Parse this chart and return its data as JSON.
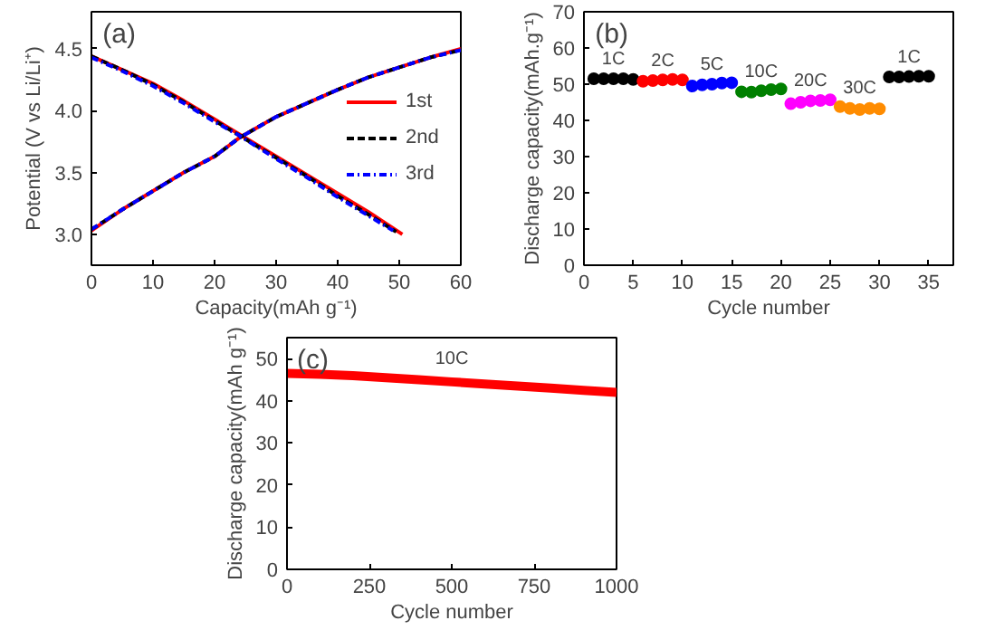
{
  "chart_data": [
    {
      "type": "line",
      "title": "(a)",
      "xlabel": "Capacity(mAh g⁻¹)",
      "ylabel": "Potential (V vs Li/Li⁺)",
      "xlim": [
        0,
        60
      ],
      "xticks": [
        0,
        10,
        20,
        30,
        40,
        50,
        60
      ],
      "ylim": [
        2.75,
        4.8
      ],
      "yticks": [
        {
          "value": 3,
          "label": "3.0"
        },
        3.5,
        {
          "value": 4,
          "label": "4.0"
        },
        4.5
      ],
      "legend": "right",
      "grid": false,
      "series": [
        {
          "name": "1st",
          "color": "#ff0000",
          "line_style": "solid",
          "x": [
            0,
            5,
            10,
            15,
            20,
            24,
            30,
            35,
            40,
            45,
            50,
            55,
            60,
            null,
            0,
            5,
            10,
            15,
            20,
            24,
            30,
            35,
            40,
            45,
            50.5
          ],
          "values": [
            3.03,
            3.2,
            3.35,
            3.5,
            3.63,
            3.78,
            3.95,
            4.06,
            4.17,
            4.27,
            4.35,
            4.43,
            4.5,
            null,
            4.44,
            4.33,
            4.22,
            4.08,
            3.93,
            3.81,
            3.63,
            3.48,
            3.33,
            3.18,
            3.0
          ]
        },
        {
          "name": "2nd",
          "color": "#000000",
          "line_style": "dashed",
          "x": [
            0,
            5,
            10,
            15,
            20,
            24,
            30,
            35,
            40,
            45,
            50,
            55,
            60,
            null,
            0,
            5,
            10,
            15,
            20,
            24,
            30,
            35,
            40,
            45,
            49.5
          ],
          "values": [
            3.04,
            3.2,
            3.35,
            3.5,
            3.63,
            3.78,
            3.95,
            4.06,
            4.17,
            4.27,
            4.35,
            4.43,
            4.49,
            null,
            4.44,
            4.33,
            4.21,
            4.07,
            3.92,
            3.8,
            3.62,
            3.47,
            3.31,
            3.16,
            3.02
          ]
        },
        {
          "name": "3rd",
          "color": "#0000ff",
          "line_style": "dotted",
          "x": [
            0,
            5,
            10,
            15,
            20,
            24,
            30,
            35,
            40,
            45,
            50,
            55,
            60,
            null,
            0,
            5,
            10,
            15,
            20,
            24,
            30,
            35,
            40,
            45,
            49
          ],
          "values": [
            3.04,
            3.2,
            3.35,
            3.5,
            3.63,
            3.78,
            3.95,
            4.06,
            4.17,
            4.27,
            4.35,
            4.43,
            4.49,
            null,
            4.43,
            4.32,
            4.2,
            4.06,
            3.91,
            3.8,
            3.61,
            3.46,
            3.3,
            3.15,
            3.03
          ]
        }
      ]
    },
    {
      "type": "scatter",
      "title": "(b)",
      "xlabel": "Cycle number",
      "ylabel": "Discharge capacity(mAh.g⁻¹)",
      "xlim": [
        0,
        37.5
      ],
      "xticks": [
        0,
        5,
        10,
        15,
        20,
        25,
        30,
        35
      ],
      "ylim": [
        0,
        70
      ],
      "yticks": [
        0,
        10,
        20,
        30,
        40,
        50,
        60,
        70
      ],
      "marker": "circle",
      "grid": false,
      "series": [
        {
          "color": "#000000",
          "x": [
            1,
            2,
            3,
            4,
            5
          ],
          "values": [
            51.5,
            51.5,
            51.5,
            51.5,
            51.3
          ]
        },
        {
          "color": "#ff0000",
          "x": [
            6,
            7,
            8,
            9,
            10
          ],
          "values": [
            50.8,
            51.0,
            51.2,
            51.3,
            51.2
          ]
        },
        {
          "color": "#0000ff",
          "x": [
            11,
            12,
            13,
            14,
            15
          ],
          "values": [
            49.5,
            49.8,
            50.0,
            50.3,
            50.4
          ]
        },
        {
          "color": "#008000",
          "x": [
            16,
            17,
            18,
            19,
            20
          ],
          "values": [
            47.9,
            47.8,
            48.2,
            48.5,
            48.7
          ]
        },
        {
          "color": "#ff00ff",
          "x": [
            21,
            22,
            23,
            24,
            25
          ],
          "values": [
            44.6,
            45.0,
            45.4,
            45.5,
            45.7
          ]
        },
        {
          "color": "#ff8c00",
          "x": [
            26,
            27,
            28,
            29,
            30
          ],
          "values": [
            43.8,
            43.3,
            43.0,
            43.3,
            43.2
          ]
        },
        {
          "color": "#000000",
          "x": [
            31,
            32,
            33,
            34,
            35
          ],
          "values": [
            52.0,
            52.0,
            52.1,
            52.2,
            52.2
          ]
        }
      ],
      "annotations": [
        {
          "text": "1C",
          "x": 3,
          "y": 54
        },
        {
          "text": "2C",
          "x": 8,
          "y": 53.5
        },
        {
          "text": "5C",
          "x": 13,
          "y": 52.5
        },
        {
          "text": "10C",
          "x": 18,
          "y": 50.5
        },
        {
          "text": "20C",
          "x": 23,
          "y": 48
        },
        {
          "text": "30C",
          "x": 28,
          "y": 46
        },
        {
          "text": "1C",
          "x": 33,
          "y": 54.5
        }
      ]
    },
    {
      "type": "line",
      "title": "(c)",
      "xlabel": "Cycle number",
      "ylabel": "Discharge capacity(mAh g⁻¹)",
      "xlim": [
        0,
        1000
      ],
      "xticks": [
        0,
        250,
        500,
        750,
        1000
      ],
      "ylim": [
        0,
        55
      ],
      "yticks": [
        0,
        10,
        20,
        30,
        40,
        50
      ],
      "grid": false,
      "series": [
        {
          "color": "#ff0000",
          "line_style": "solid",
          "x": [
            0,
            100,
            200,
            300,
            400,
            500,
            600,
            700,
            800,
            900,
            1000
          ],
          "values": [
            46.5,
            46.3,
            46.0,
            45.5,
            45.0,
            44.5,
            44.0,
            43.5,
            43.0,
            42.5,
            42.0
          ]
        }
      ],
      "annotations": [
        "10C"
      ]
    }
  ]
}
